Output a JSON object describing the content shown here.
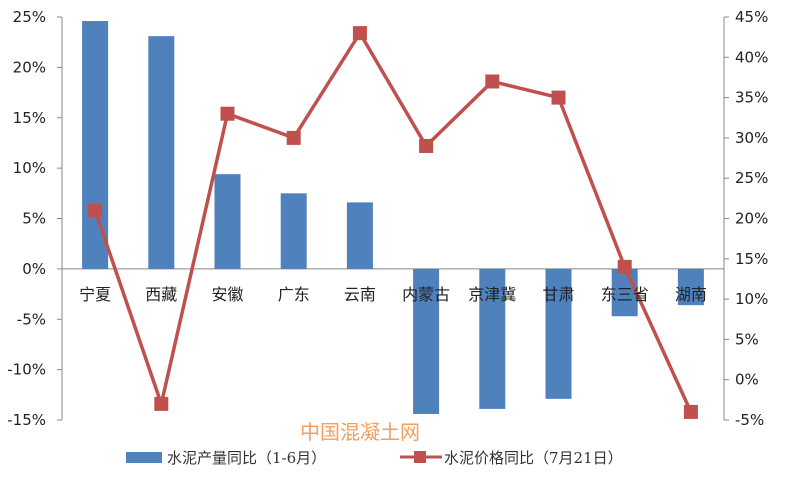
{
  "chart_data": {
    "type": "bar+line",
    "categories": [
      "宁夏",
      "西藏",
      "安徽",
      "广东",
      "云南",
      "内蒙古",
      "京津冀",
      "甘肃",
      "东三省",
      "湖南"
    ],
    "series": [
      {
        "name": "水泥产量同比（1-6月）",
        "type": "bar",
        "axis": "left",
        "color": "#4f81bd",
        "values": [
          24.6,
          23.1,
          9.4,
          7.5,
          6.6,
          -14.4,
          -13.9,
          -12.9,
          -4.7,
          -3.6
        ]
      },
      {
        "name": "水泥价格同比（7月21日）",
        "type": "line",
        "axis": "right",
        "color": "#c0504d",
        "values": [
          21,
          -3,
          33,
          30,
          43,
          29,
          37,
          35,
          14,
          -4
        ]
      }
    ],
    "left_axis": {
      "ylim": [
        -15,
        25
      ],
      "ticks": [
        "25%",
        "20%",
        "15%",
        "10%",
        "5%",
        "0%",
        "-5%",
        "-10%",
        "-15%"
      ]
    },
    "right_axis": {
      "ylim": [
        -5,
        45
      ],
      "ticks": [
        "45%",
        "40%",
        "35%",
        "30%",
        "25%",
        "20%",
        "15%",
        "10%",
        "5%",
        "0%",
        "-5%"
      ]
    },
    "grid": false,
    "legend": "bottom"
  },
  "watermark": "中国混凝土网"
}
